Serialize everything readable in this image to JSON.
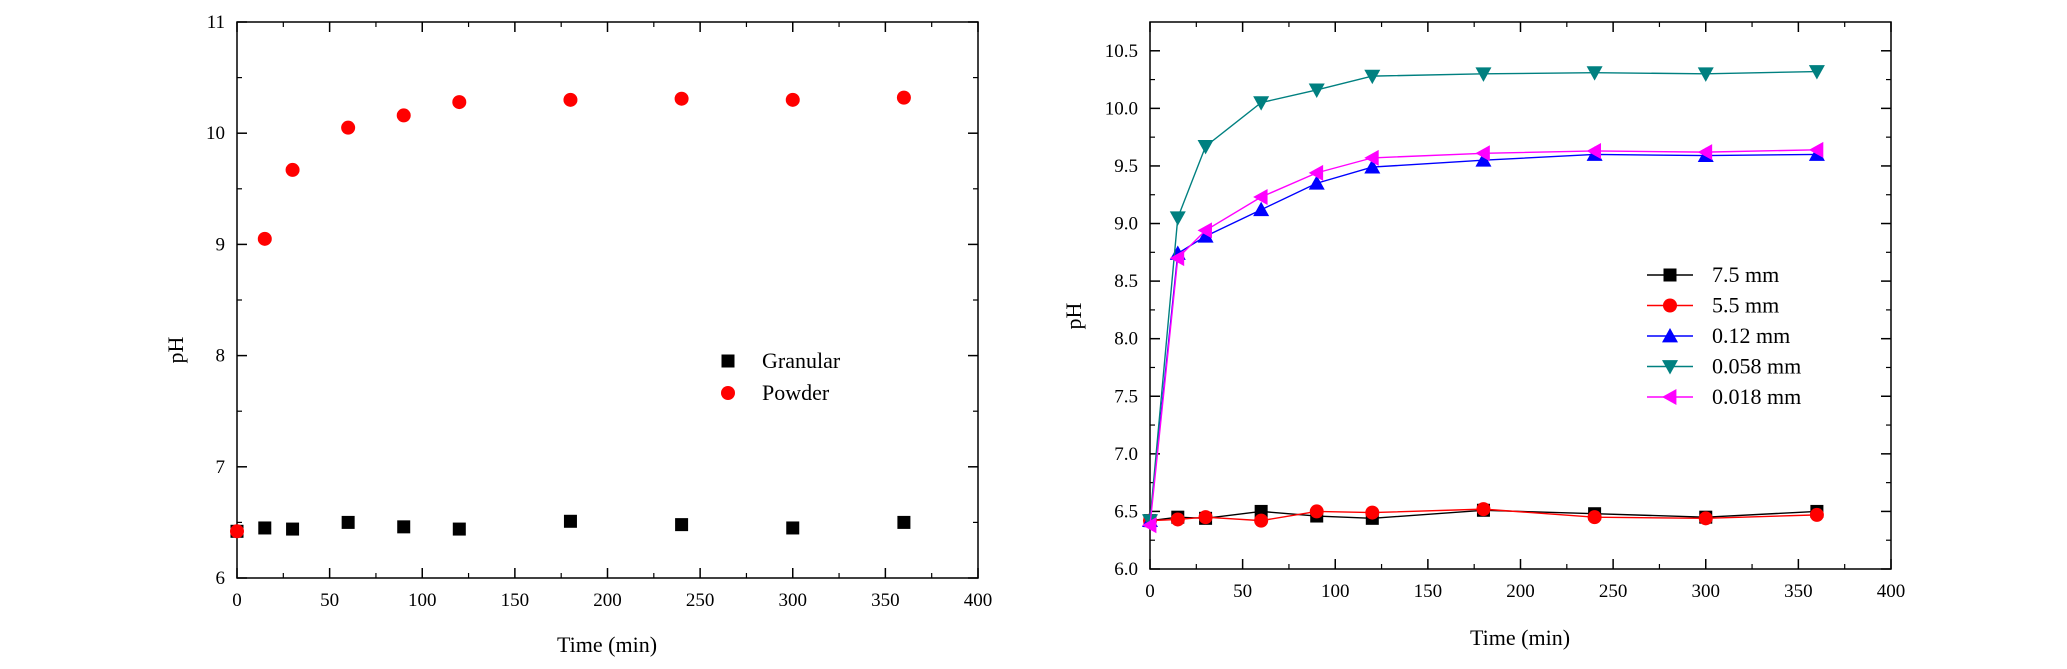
{
  "chart_data": [
    {
      "type": "scatter",
      "xlabel": "Time (min)",
      "ylabel": "pH",
      "xlim": [
        0,
        400
      ],
      "ylim": [
        6,
        11
      ],
      "xticks": [
        "0",
        "50",
        "100",
        "150",
        "200",
        "250",
        "300",
        "350",
        "400"
      ],
      "yticks": [
        "6",
        "7",
        "8",
        "9",
        "10",
        "11"
      ],
      "grid": false,
      "legend_position": "center-right",
      "series": [
        {
          "name": "Granular",
          "color": "#000000",
          "marker": "square",
          "x": [
            0,
            15,
            30,
            60,
            90,
            120,
            180,
            240,
            300,
            360
          ],
          "y": [
            6.42,
            6.45,
            6.44,
            6.5,
            6.46,
            6.44,
            6.51,
            6.48,
            6.45,
            6.5
          ]
        },
        {
          "name": "Powder",
          "color": "#ff0000",
          "marker": "circle",
          "x": [
            0,
            15,
            30,
            60,
            90,
            120,
            180,
            240,
            300,
            360
          ],
          "y": [
            6.42,
            9.05,
            9.67,
            10.05,
            10.16,
            10.28,
            10.3,
            10.31,
            10.3,
            10.32
          ]
        }
      ]
    },
    {
      "type": "line",
      "xlabel": "Time (min)",
      "ylabel": "pH",
      "xlim": [
        0,
        400
      ],
      "ylim": [
        6.0,
        10.75
      ],
      "xticks": [
        "0",
        "50",
        "100",
        "150",
        "200",
        "250",
        "300",
        "350",
        "400"
      ],
      "yticks": [
        "6.0",
        "6.5",
        "7.0",
        "7.5",
        "8.0",
        "8.5",
        "9.0",
        "9.5",
        "10.0",
        "10.5"
      ],
      "grid": false,
      "legend_position": "center-right",
      "series": [
        {
          "name": "7.5 mm",
          "color": "#000000",
          "marker": "square",
          "x": [
            0,
            15,
            30,
            60,
            90,
            120,
            180,
            240,
            300,
            360
          ],
          "y": [
            6.42,
            6.45,
            6.44,
            6.5,
            6.46,
            6.44,
            6.51,
            6.48,
            6.45,
            6.5
          ]
        },
        {
          "name": "5.5 mm",
          "color": "#ff0000",
          "marker": "circle",
          "x": [
            0,
            15,
            30,
            60,
            90,
            120,
            180,
            240,
            300,
            360
          ],
          "y": [
            6.42,
            6.43,
            6.45,
            6.42,
            6.5,
            6.49,
            6.52,
            6.45,
            6.44,
            6.47
          ]
        },
        {
          "name": "0.12 mm",
          "color": "#0000ff",
          "marker": "triangle-up",
          "x": [
            0,
            15,
            30,
            60,
            90,
            120,
            180,
            240,
            300,
            360
          ],
          "y": [
            6.42,
            8.74,
            8.89,
            9.12,
            9.35,
            9.49,
            9.55,
            9.6,
            9.59,
            9.6
          ]
        },
        {
          "name": "0.058 mm",
          "color": "#008080",
          "marker": "triangle-down",
          "x": [
            0,
            15,
            30,
            60,
            90,
            120,
            180,
            240,
            300,
            360
          ],
          "y": [
            6.42,
            9.05,
            9.67,
            10.05,
            10.16,
            10.28,
            10.3,
            10.31,
            10.3,
            10.32
          ]
        },
        {
          "name": "0.018 mm",
          "color": "#ff00ff",
          "marker": "triangle-left",
          "x": [
            0,
            15,
            30,
            60,
            90,
            120,
            180,
            240,
            300,
            360
          ],
          "y": [
            6.38,
            8.7,
            8.94,
            9.23,
            9.44,
            9.57,
            9.61,
            9.63,
            9.62,
            9.64
          ]
        }
      ]
    }
  ]
}
